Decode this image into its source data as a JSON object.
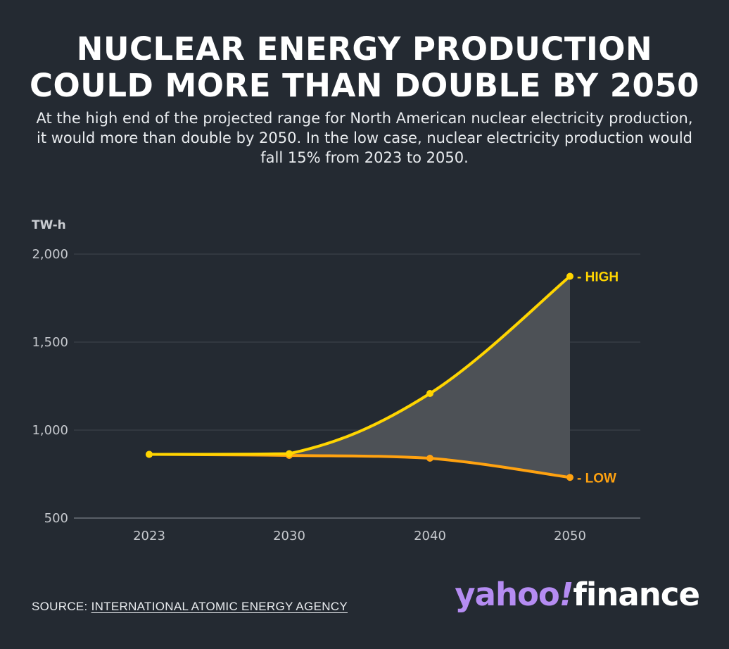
{
  "header": {
    "title_line1": "NUCLEAR ENERGY PRODUCTION",
    "title_line2": "COULD MORE THAN DOUBLE BY 2050",
    "subtitle": "At the high end of the projected range for North American nuclear electricity production, it would more than double by 2050. In the low case, nuclear electricity production would fall 15% from 2023 to 2050."
  },
  "footer": {
    "source_prefix": "SOURCE: ",
    "source_link": "INTERNATIONAL ATOMIC ENERGY AGENCY",
    "logo_yahoo": "yahoo",
    "logo_bang": "!",
    "logo_finance": "finance"
  },
  "chart_data": {
    "type": "line",
    "unit_label": "TW-h",
    "x": [
      "2023",
      "2030",
      "2040",
      "2050"
    ],
    "ylim": [
      500,
      2000
    ],
    "yticks": [
      500,
      1000,
      1500,
      2000
    ],
    "ytick_labels": [
      "500",
      "1,000",
      "1,500",
      "2,000"
    ],
    "grid": true,
    "shaded_range_between_series": true,
    "range_fill_color": "#4d5156",
    "series": [
      {
        "name": "HIGH",
        "values": [
          862,
          866,
          1208,
          1874
        ],
        "color": "#ffd500"
      },
      {
        "name": "LOW",
        "values": [
          862,
          856,
          840,
          731
        ],
        "color": "#ffa210"
      }
    ]
  }
}
